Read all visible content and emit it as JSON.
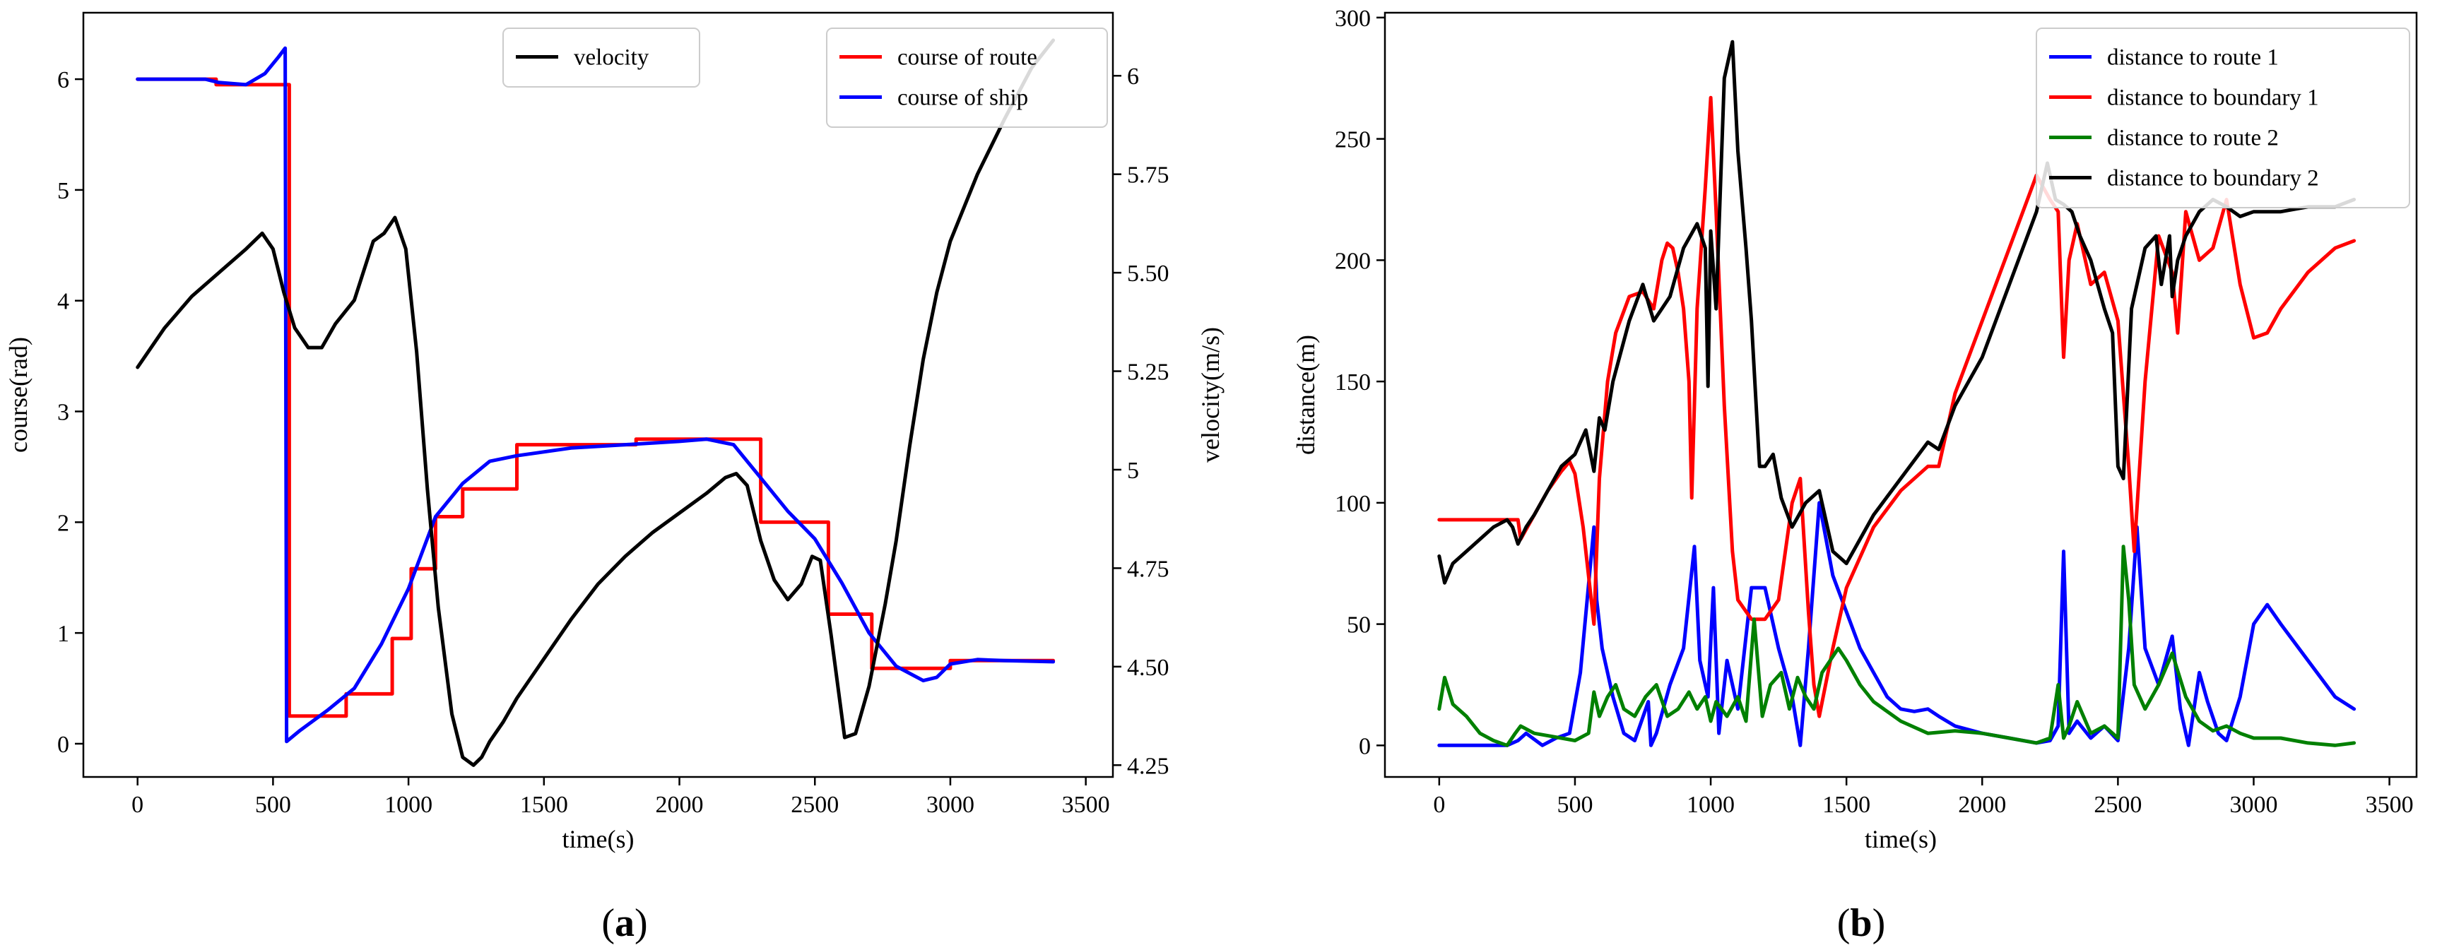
{
  "panel_labels": {
    "a": "a",
    "b": "b"
  },
  "chart_data": [
    {
      "type": "line",
      "panel": "a",
      "xlabel": "time(s)",
      "ylabel": "course(rad)",
      "ylabel_right": "velocity(m/s)",
      "xlim": [
        -200,
        3600
      ],
      "ylim": [
        -0.3,
        6.6
      ],
      "ylim_right": [
        4.22,
        6.16
      ],
      "xticks": [
        0,
        500,
        1000,
        1500,
        2000,
        2500,
        3000,
        3500
      ],
      "yticks": [
        0,
        1,
        2,
        3,
        4,
        5,
        6
      ],
      "yticks_right": [
        4.25,
        4.5,
        4.75,
        5.0,
        5.25,
        5.5,
        5.75,
        6.0
      ],
      "legend_left": {
        "placement": "top-center",
        "entries": [
          {
            "name": "velocity",
            "color": "#000000"
          }
        ]
      },
      "legend_right": {
        "placement": "top-right",
        "entries": [
          {
            "name": "course of route",
            "color": "#ff0000"
          },
          {
            "name": "course of ship",
            "color": "#0000ff"
          }
        ]
      },
      "series": [
        {
          "name": "course of route",
          "axis": "left",
          "color": "#ff0000",
          "x": [
            0,
            290,
            290,
            560,
            560,
            770,
            770,
            940,
            940,
            1010,
            1010,
            1100,
            1100,
            1200,
            1200,
            1400,
            1400,
            1840,
            1840,
            2300,
            2300,
            2550,
            2550,
            2710,
            2710,
            3000,
            3000,
            3380
          ],
          "y": [
            6.0,
            6.0,
            5.95,
            5.95,
            0.25,
            0.25,
            0.45,
            0.45,
            0.95,
            0.95,
            1.58,
            1.58,
            2.05,
            2.05,
            2.3,
            2.3,
            2.7,
            2.7,
            2.75,
            2.75,
            2.0,
            2.0,
            1.17,
            1.17,
            0.68,
            0.68,
            0.75,
            0.75
          ]
        },
        {
          "name": "course of ship",
          "axis": "left",
          "color": "#0000ff",
          "x": [
            0,
            250,
            300,
            400,
            470,
            520,
            545,
            550,
            600,
            700,
            800,
            900,
            1000,
            1100,
            1200,
            1300,
            1400,
            1600,
            1800,
            2000,
            2100,
            2200,
            2300,
            2400,
            2500,
            2600,
            2700,
            2800,
            2900,
            2950,
            3000,
            3100,
            3200,
            3380
          ],
          "y": [
            6.0,
            6.0,
            5.97,
            5.95,
            6.05,
            6.2,
            6.28,
            0.02,
            0.12,
            0.3,
            0.5,
            0.9,
            1.4,
            2.05,
            2.35,
            2.55,
            2.6,
            2.67,
            2.7,
            2.73,
            2.75,
            2.7,
            2.4,
            2.1,
            1.85,
            1.45,
            1.0,
            0.7,
            0.57,
            0.6,
            0.72,
            0.76,
            0.75,
            0.74
          ]
        },
        {
          "name": "velocity",
          "axis": "right",
          "color": "#000000",
          "x": [
            0,
            100,
            200,
            300,
            400,
            460,
            500,
            540,
            580,
            630,
            680,
            730,
            800,
            870,
            910,
            950,
            990,
            1030,
            1070,
            1110,
            1160,
            1200,
            1240,
            1270,
            1300,
            1350,
            1400,
            1500,
            1600,
            1700,
            1800,
            1900,
            2000,
            2100,
            2170,
            2210,
            2250,
            2300,
            2350,
            2400,
            2450,
            2490,
            2520,
            2560,
            2610,
            2650,
            2700,
            2760,
            2800,
            2850,
            2900,
            2950,
            3000,
            3100,
            3200,
            3300,
            3380
          ],
          "y": [
            5.26,
            5.36,
            5.44,
            5.5,
            5.56,
            5.6,
            5.56,
            5.45,
            5.36,
            5.31,
            5.31,
            5.37,
            5.43,
            5.58,
            5.6,
            5.64,
            5.56,
            5.3,
            4.95,
            4.65,
            4.38,
            4.27,
            4.25,
            4.27,
            4.31,
            4.36,
            4.42,
            4.52,
            4.62,
            4.71,
            4.78,
            4.84,
            4.89,
            4.94,
            4.98,
            4.99,
            4.96,
            4.82,
            4.72,
            4.67,
            4.71,
            4.78,
            4.77,
            4.58,
            4.32,
            4.33,
            4.45,
            4.66,
            4.82,
            5.06,
            5.28,
            5.45,
            5.58,
            5.75,
            5.89,
            6.02,
            6.09
          ]
        }
      ]
    },
    {
      "type": "line",
      "panel": "b",
      "xlabel": "time(s)",
      "ylabel": "distance(m)",
      "xlim": [
        -200,
        3600
      ],
      "ylim": [
        -13,
        302
      ],
      "xticks": [
        0,
        500,
        1000,
        1500,
        2000,
        2500,
        3000,
        3500
      ],
      "yticks": [
        0,
        50,
        100,
        150,
        200,
        250,
        300
      ],
      "legend": {
        "placement": "top-right",
        "entries": [
          {
            "name": "distance to route 1",
            "color": "#0000ff"
          },
          {
            "name": "distance to boundary 1",
            "color": "#ff0000"
          },
          {
            "name": "distance to route 2",
            "color": "#008000"
          },
          {
            "name": "distance to boundary 2",
            "color": "#000000"
          }
        ]
      },
      "series": [
        {
          "name": "distance to route 1",
          "color": "#0000ff",
          "x": [
            0,
            250,
            290,
            320,
            380,
            430,
            480,
            520,
            570,
            580,
            600,
            640,
            680,
            720,
            770,
            780,
            800,
            850,
            900,
            940,
            960,
            990,
            1010,
            1030,
            1060,
            1100,
            1150,
            1200,
            1250,
            1300,
            1330,
            1360,
            1400,
            1450,
            1500,
            1550,
            1600,
            1650,
            1700,
            1750,
            1800,
            1840,
            1900,
            2000,
            2100,
            2200,
            2250,
            2280,
            2300,
            2320,
            2350,
            2400,
            2450,
            2500,
            2540,
            2570,
            2600,
            2650,
            2700,
            2730,
            2760,
            2800,
            2830,
            2870,
            2900,
            2950,
            3000,
            3050,
            3100,
            3200,
            3300,
            3370
          ],
          "y": [
            0,
            0,
            2,
            5,
            0,
            3,
            5,
            30,
            90,
            60,
            40,
            20,
            5,
            2,
            18,
            0,
            5,
            25,
            40,
            82,
            35,
            20,
            65,
            5,
            35,
            15,
            65,
            65,
            40,
            20,
            0,
            40,
            100,
            70,
            55,
            40,
            30,
            20,
            15,
            14,
            15,
            12,
            8,
            5,
            3,
            1,
            2,
            8,
            80,
            5,
            10,
            3,
            8,
            2,
            40,
            90,
            40,
            25,
            45,
            15,
            0,
            30,
            18,
            5,
            2,
            20,
            50,
            58,
            50,
            35,
            20,
            15
          ]
        },
        {
          "name": "distance to boundary 1",
          "color": "#ff0000",
          "x": [
            0,
            250,
            290,
            300,
            350,
            400,
            450,
            480,
            500,
            530,
            560,
            570,
            590,
            620,
            650,
            700,
            750,
            790,
            820,
            840,
            860,
            880,
            900,
            920,
            930,
            950,
            980,
            1000,
            1020,
            1050,
            1080,
            1100,
            1150,
            1200,
            1250,
            1300,
            1330,
            1360,
            1380,
            1400,
            1450,
            1500,
            1600,
            1700,
            1800,
            1840,
            1900,
            2000,
            2100,
            2200,
            2250,
            2280,
            2300,
            2320,
            2350,
            2400,
            2450,
            2500,
            2540,
            2560,
            2600,
            2650,
            2700,
            2720,
            2750,
            2800,
            2850,
            2900,
            2950,
            3000,
            3050,
            3100,
            3200,
            3300,
            3370
          ],
          "y": [
            93,
            93,
            93,
            85,
            95,
            105,
            113,
            117,
            112,
            90,
            60,
            50,
            110,
            150,
            170,
            185,
            187,
            180,
            200,
            207,
            205,
            195,
            180,
            150,
            102,
            180,
            230,
            267,
            220,
            140,
            80,
            60,
            52,
            52,
            60,
            100,
            110,
            55,
            25,
            12,
            40,
            65,
            90,
            105,
            115,
            115,
            145,
            175,
            205,
            235,
            225,
            220,
            160,
            200,
            215,
            190,
            195,
            175,
            115,
            80,
            150,
            210,
            195,
            170,
            220,
            200,
            205,
            225,
            190,
            168,
            170,
            180,
            195,
            205,
            208
          ]
        },
        {
          "name": "distance to route 2",
          "color": "#008000",
          "x": [
            0,
            20,
            50,
            100,
            150,
            200,
            250,
            280,
            300,
            350,
            400,
            450,
            500,
            550,
            570,
            590,
            620,
            650,
            680,
            720,
            760,
            800,
            840,
            880,
            920,
            950,
            980,
            1000,
            1020,
            1060,
            1100,
            1130,
            1160,
            1190,
            1220,
            1260,
            1290,
            1320,
            1350,
            1380,
            1410,
            1440,
            1470,
            1500,
            1550,
            1600,
            1700,
            1800,
            1900,
            2000,
            2100,
            2200,
            2250,
            2280,
            2300,
            2320,
            2350,
            2400,
            2450,
            2500,
            2520,
            2540,
            2560,
            2600,
            2650,
            2700,
            2750,
            2800,
            2850,
            2900,
            2950,
            3000,
            3100,
            3200,
            3300,
            3370
          ],
          "y": [
            15,
            28,
            17,
            12,
            5,
            2,
            0,
            5,
            8,
            5,
            4,
            3,
            2,
            5,
            22,
            12,
            20,
            25,
            15,
            12,
            20,
            25,
            12,
            15,
            22,
            15,
            20,
            10,
            18,
            12,
            20,
            10,
            52,
            12,
            25,
            30,
            15,
            28,
            20,
            15,
            30,
            35,
            40,
            35,
            25,
            18,
            10,
            5,
            6,
            5,
            3,
            1,
            3,
            25,
            3,
            8,
            18,
            5,
            8,
            3,
            82,
            60,
            25,
            15,
            25,
            38,
            20,
            10,
            6,
            8,
            5,
            3,
            3,
            1,
            0,
            1
          ]
        },
        {
          "name": "distance to boundary 2",
          "color": "#000000",
          "x": [
            0,
            20,
            50,
            100,
            150,
            200,
            250,
            270,
            290,
            320,
            350,
            400,
            450,
            500,
            540,
            570,
            590,
            610,
            640,
            700,
            750,
            790,
            820,
            850,
            900,
            950,
            980,
            990,
            1000,
            1020,
            1050,
            1080,
            1100,
            1130,
            1150,
            1180,
            1200,
            1230,
            1260,
            1300,
            1350,
            1400,
            1450,
            1480,
            1500,
            1550,
            1600,
            1700,
            1800,
            1840,
            1900,
            2000,
            2100,
            2200,
            2240,
            2270,
            2300,
            2330,
            2360,
            2400,
            2450,
            2480,
            2500,
            2520,
            2550,
            2600,
            2640,
            2660,
            2690,
            2700,
            2720,
            2750,
            2800,
            2850,
            2900,
            2950,
            3000,
            3100,
            3200,
            3300,
            3370
          ],
          "y": [
            78,
            67,
            75,
            80,
            85,
            90,
            93,
            90,
            83,
            90,
            95,
            105,
            115,
            120,
            130,
            113,
            135,
            130,
            150,
            175,
            190,
            175,
            180,
            185,
            205,
            215,
            205,
            148,
            212,
            180,
            275,
            290,
            245,
            205,
            175,
            115,
            115,
            120,
            102,
            90,
            100,
            105,
            80,
            77,
            75,
            85,
            95,
            110,
            125,
            122,
            140,
            160,
            190,
            220,
            240,
            225,
            223,
            220,
            210,
            200,
            180,
            170,
            115,
            110,
            180,
            205,
            210,
            190,
            210,
            185,
            200,
            210,
            220,
            225,
            222,
            218,
            220,
            220,
            222,
            222,
            225
          ]
        }
      ]
    }
  ]
}
